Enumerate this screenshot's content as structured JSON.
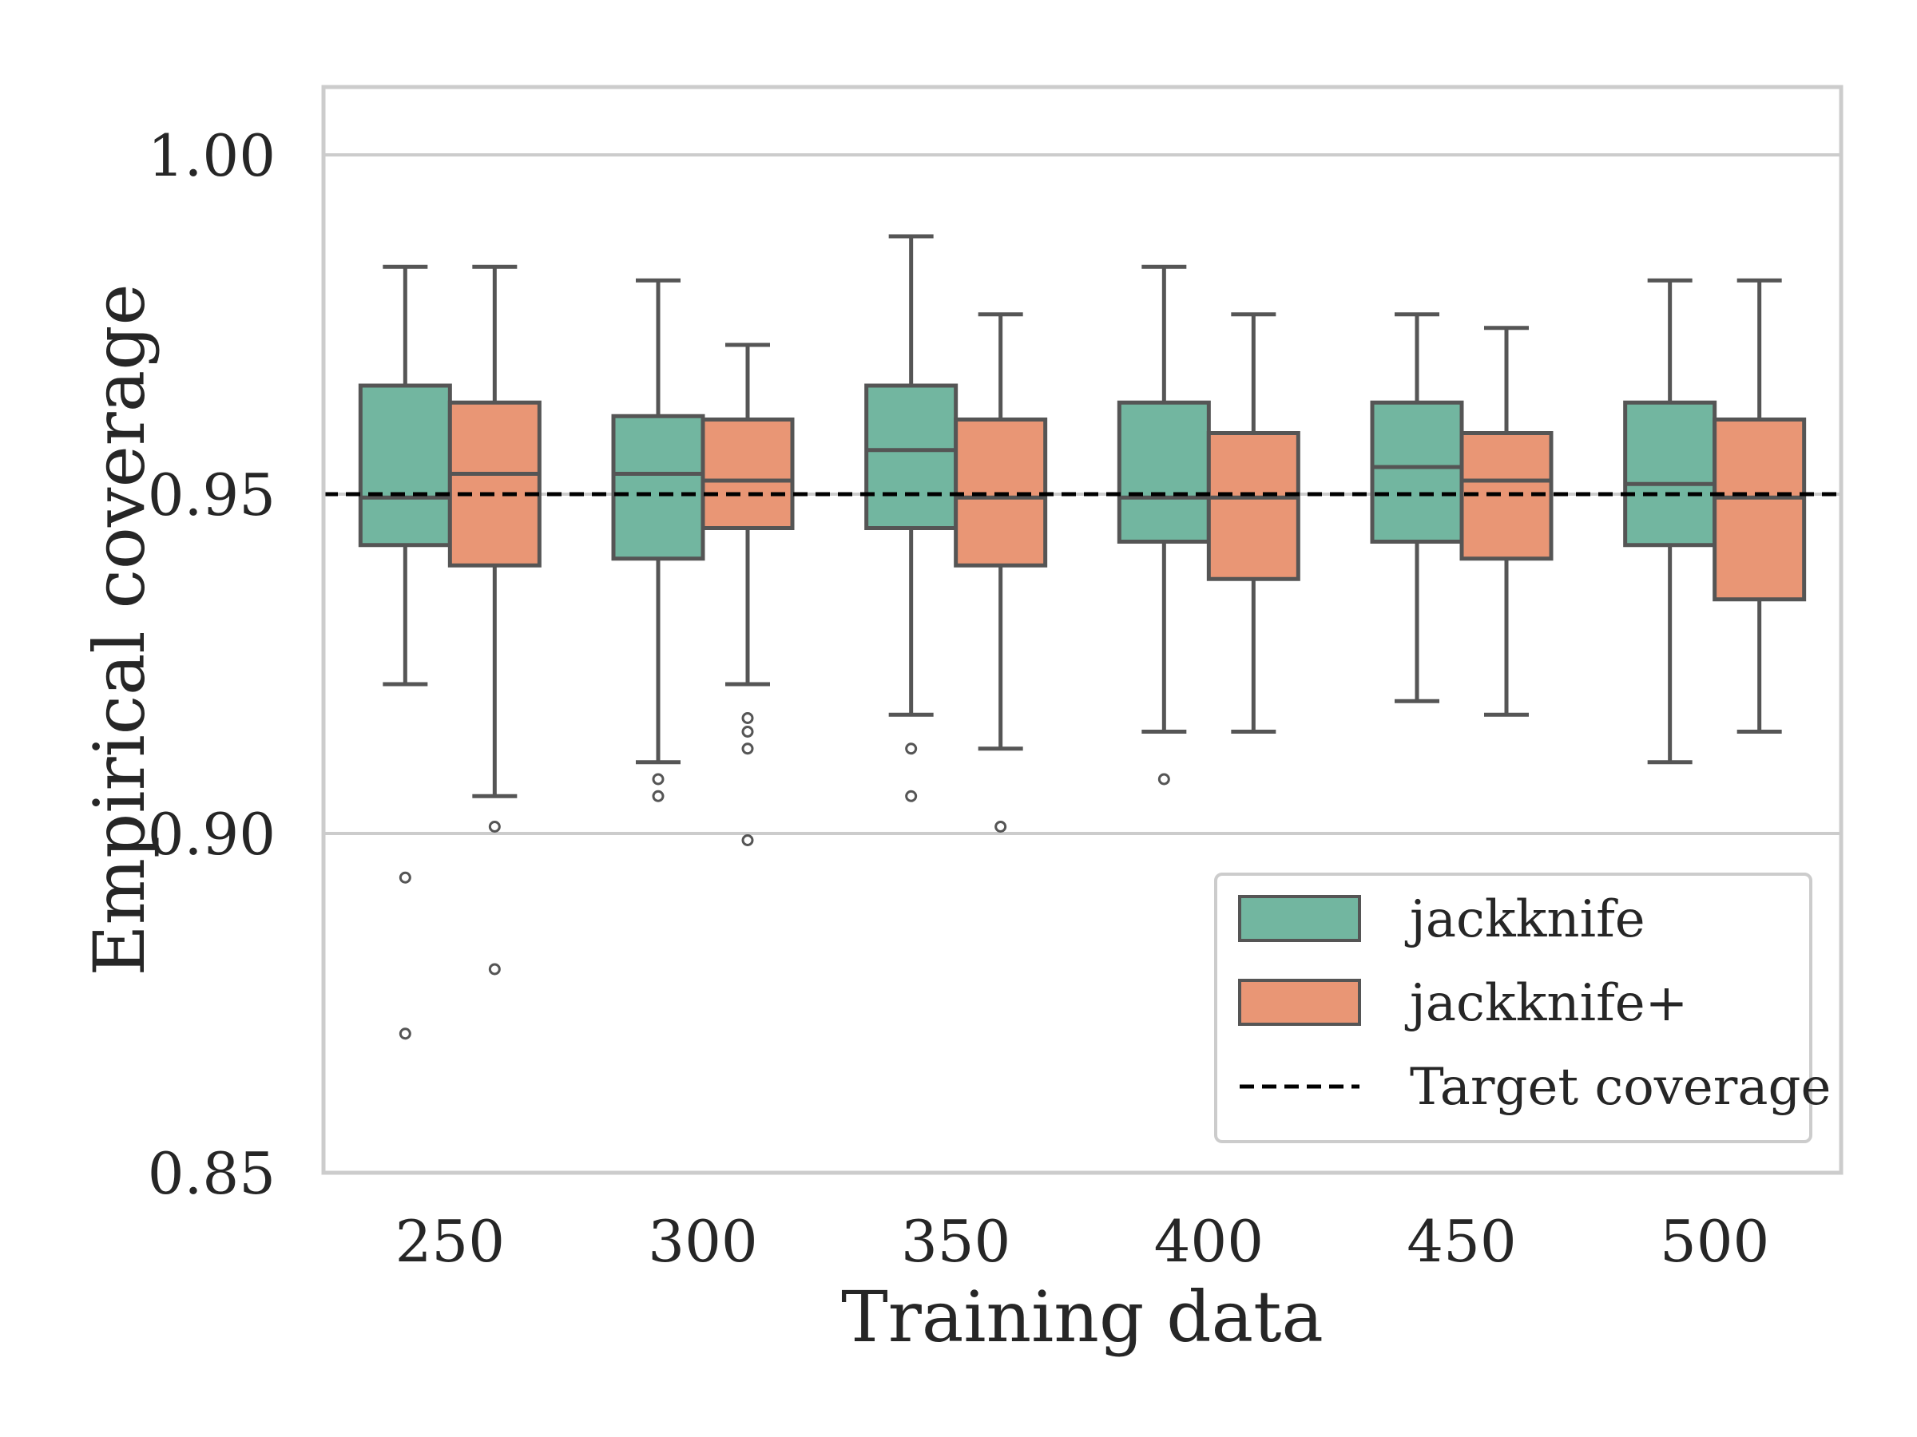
{
  "chart_data": {
    "type": "boxplot",
    "title": "",
    "xlabel": "Training data",
    "ylabel": "Empirical coverage",
    "categories": [
      "250",
      "300",
      "350",
      "400",
      "450",
      "500"
    ],
    "ylim": [
      0.85,
      1.01
    ],
    "yticks": [
      0.85,
      0.9,
      0.95,
      1.0
    ],
    "ytick_labels": [
      "0.85",
      "0.90",
      "0.95",
      "1.00"
    ],
    "grid": true,
    "legend_position": "lower-right",
    "target_line": {
      "label": "Target coverage",
      "value": 0.95,
      "style": "dashed",
      "color": "#000000"
    },
    "series": [
      {
        "name": "jackknife",
        "color": "#72b6a0",
        "boxes": [
          {
            "whisker_low": 0.922,
            "q1": 0.9425,
            "median": 0.9495,
            "q3": 0.966,
            "whisker_high": 0.9835,
            "outliers": [
              0.8935,
              0.8705
            ]
          },
          {
            "whisker_low": 0.9105,
            "q1": 0.9405,
            "median": 0.953,
            "q3": 0.9615,
            "whisker_high": 0.9815,
            "outliers": [
              0.908,
              0.9055
            ]
          },
          {
            "whisker_low": 0.9175,
            "q1": 0.945,
            "median": 0.9565,
            "q3": 0.966,
            "whisker_high": 0.988,
            "outliers": [
              0.9125,
              0.9055
            ]
          },
          {
            "whisker_low": 0.915,
            "q1": 0.943,
            "median": 0.9495,
            "q3": 0.9635,
            "whisker_high": 0.9835,
            "outliers": [
              0.908
            ]
          },
          {
            "whisker_low": 0.9195,
            "q1": 0.943,
            "median": 0.954,
            "q3": 0.9635,
            "whisker_high": 0.9765,
            "outliers": []
          },
          {
            "whisker_low": 0.9105,
            "q1": 0.9425,
            "median": 0.9515,
            "q3": 0.9635,
            "whisker_high": 0.9815,
            "outliers": []
          }
        ]
      },
      {
        "name": "jackknife+",
        "color": "#e99675",
        "boxes": [
          {
            "whisker_low": 0.9055,
            "q1": 0.9395,
            "median": 0.953,
            "q3": 0.9635,
            "whisker_high": 0.9835,
            "outliers": [
              0.901,
              0.88
            ]
          },
          {
            "whisker_low": 0.922,
            "q1": 0.945,
            "median": 0.952,
            "q3": 0.961,
            "whisker_high": 0.972,
            "outliers": [
              0.917,
              0.915,
              0.9125,
              0.899
            ]
          },
          {
            "whisker_low": 0.9125,
            "q1": 0.9395,
            "median": 0.9495,
            "q3": 0.961,
            "whisker_high": 0.9765,
            "outliers": [
              0.901
            ]
          },
          {
            "whisker_low": 0.915,
            "q1": 0.9375,
            "median": 0.9495,
            "q3": 0.959,
            "whisker_high": 0.9765,
            "outliers": []
          },
          {
            "whisker_low": 0.9175,
            "q1": 0.9405,
            "median": 0.952,
            "q3": 0.959,
            "whisker_high": 0.9745,
            "outliers": []
          },
          {
            "whisker_low": 0.915,
            "q1": 0.9345,
            "median": 0.9495,
            "q3": 0.961,
            "whisker_high": 0.9815,
            "outliers": []
          }
        ]
      }
    ]
  }
}
